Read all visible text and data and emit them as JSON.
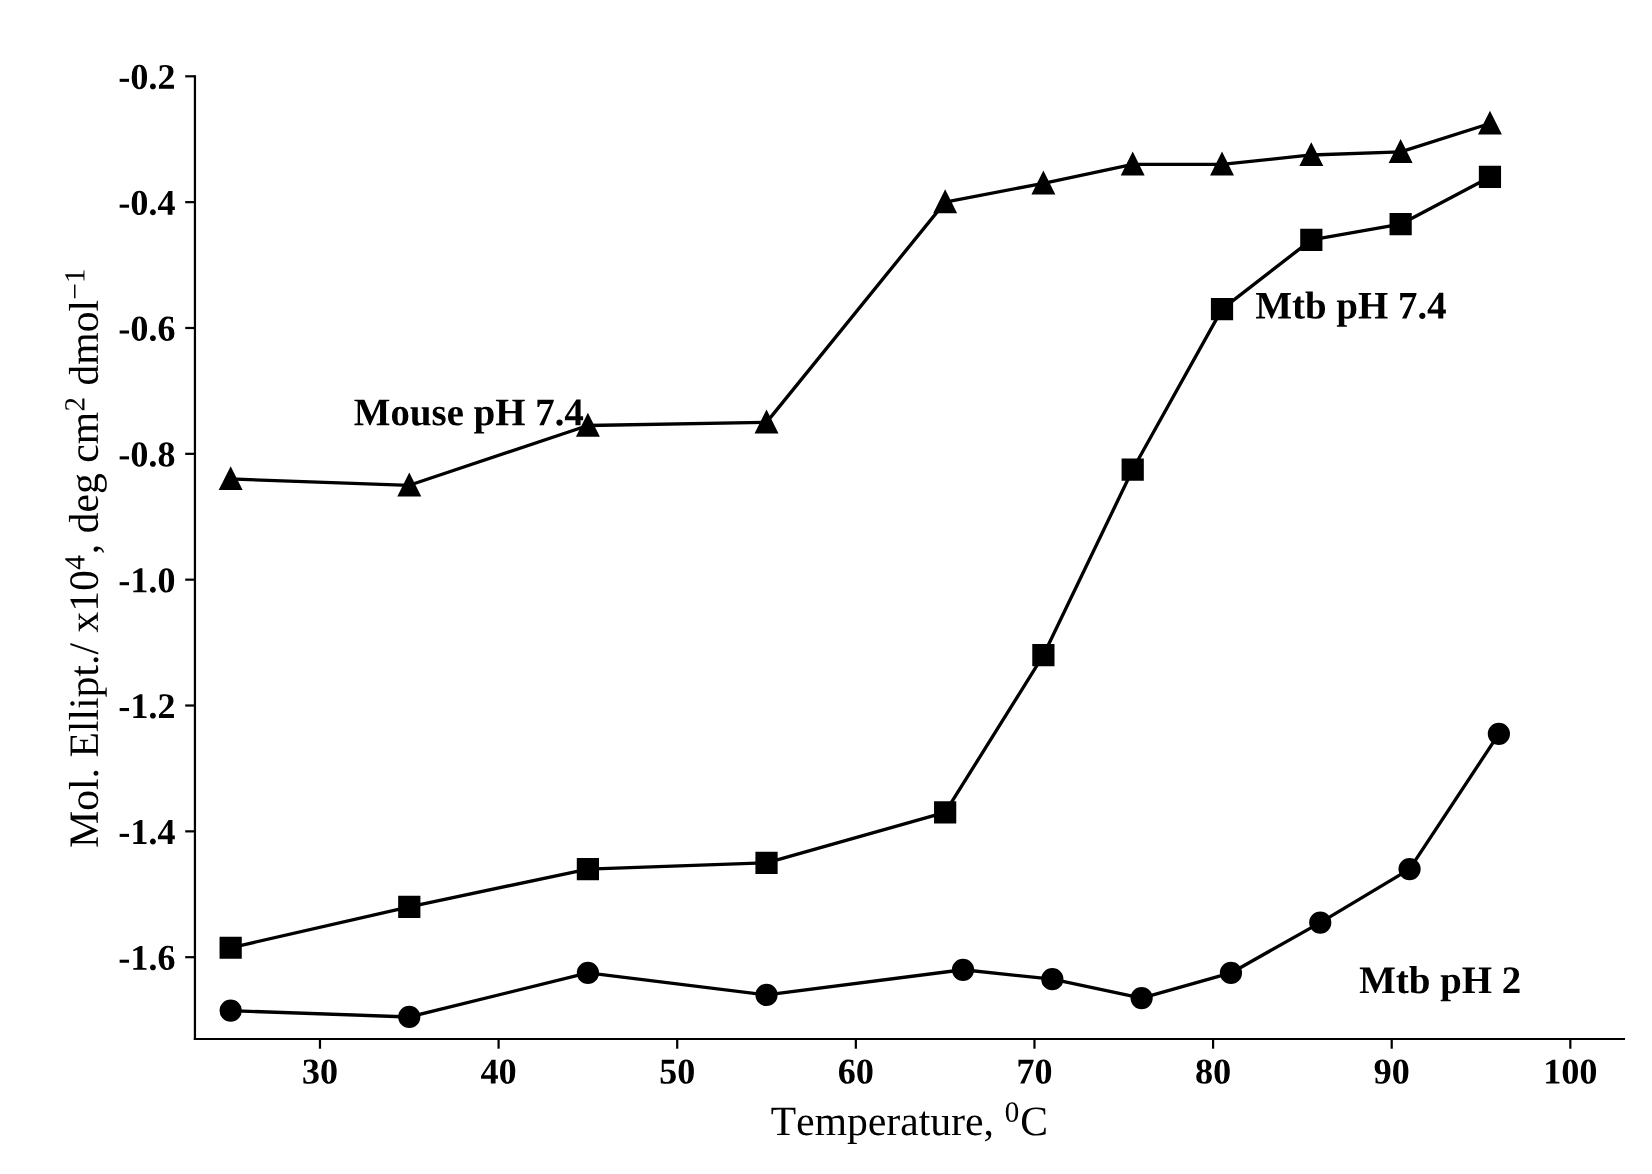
{
  "chart_data": {
    "type": "line",
    "xlabel": "Temperature, $^{0}$C",
    "ylabel": "Mol. Ellipt./ x10$^{4}$, deg cm$^{2}$ dmol$^{−1}$",
    "xlim": [
      23,
      103
    ],
    "ylim": [
      -1.73,
      -0.2
    ],
    "xticks": [
      30,
      40,
      50,
      60,
      70,
      80,
      90,
      100
    ],
    "yticks": [
      -1.6,
      -1.4,
      -1.2,
      {
        "value": -1.0,
        "label": "-1.0"
      },
      -0.8,
      -0.6,
      -0.4,
      -0.2
    ],
    "grid": false,
    "legend": false,
    "series": [
      {
        "name": "Mouse pH 7.4",
        "color": "#000000",
        "marker": "triangle",
        "x": [
          25,
          35,
          45,
          55,
          65,
          70.5,
          75.5,
          80.5,
          85.5,
          90.5,
          95.5
        ],
        "values": [
          -0.84,
          -0.85,
          -0.755,
          -0.75,
          -0.4,
          -0.37,
          -0.34,
          -0.34,
          -0.325,
          -0.32,
          -0.275
        ]
      },
      {
        "name": "Mtb pH 7.4",
        "color": "#000000",
        "marker": "square",
        "x": [
          25,
          35,
          45,
          55,
          65,
          70.5,
          75.5,
          80.5,
          85.5,
          90.5,
          95.5
        ],
        "values": [
          -1.585,
          -1.52,
          -1.46,
          -1.45,
          -1.37,
          -1.12,
          -0.825,
          -0.57,
          -0.46,
          -0.435,
          -0.36
        ]
      },
      {
        "name": "Mtb pH 2",
        "color": "#000000",
        "marker": "circle",
        "x": [
          25,
          35,
          45,
          55,
          66,
          71,
          76,
          81,
          86,
          91,
          96
        ],
        "values": [
          -1.685,
          -1.695,
          -1.625,
          -1.66,
          -1.62,
          -1.635,
          -1.665,
          -1.625,
          -1.545,
          -1.46,
          -1.245
        ]
      }
    ]
  }
}
